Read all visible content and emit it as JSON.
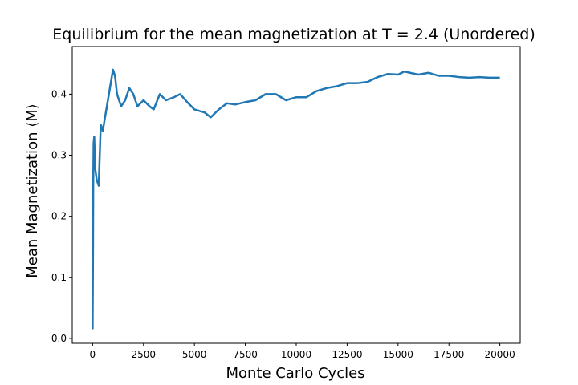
{
  "chart_data": {
    "type": "line",
    "title": "Equilibrium for the mean magnetization at T = 2.4 (Unordered)",
    "x_label": "Monte Carlo Cycles",
    "y_label": "Mean Magnetization ⟨M⟩",
    "x": [
      0,
      10,
      20,
      30,
      50,
      80,
      120,
      200,
      300,
      400,
      500,
      600,
      700,
      800,
      900,
      1000,
      1100,
      1200,
      1400,
      1600,
      1800,
      2000,
      2200,
      2500,
      2800,
      3000,
      3300,
      3600,
      4000,
      4300,
      4700,
      5000,
      5500,
      5800,
      6200,
      6600,
      7000,
      7500,
      8000,
      8500,
      9000,
      9500,
      10000,
      10500,
      11000,
      11500,
      12000,
      12500,
      13000,
      13500,
      14000,
      14500,
      15000,
      15300,
      16000,
      16500,
      17000,
      17500,
      18000,
      18500,
      19000,
      19500,
      20000
    ],
    "series": [
      {
        "name": "Mean Magnetization",
        "color": "#1f77b4",
        "values": [
          0.015,
          0.08,
          0.15,
          0.25,
          0.32,
          0.33,
          0.28,
          0.26,
          0.25,
          0.35,
          0.34,
          0.36,
          0.38,
          0.4,
          0.42,
          0.44,
          0.43,
          0.4,
          0.38,
          0.39,
          0.41,
          0.4,
          0.38,
          0.39,
          0.38,
          0.375,
          0.4,
          0.39,
          0.395,
          0.4,
          0.385,
          0.375,
          0.37,
          0.362,
          0.375,
          0.385,
          0.383,
          0.387,
          0.39,
          0.4,
          0.4,
          0.39,
          0.395,
          0.395,
          0.405,
          0.41,
          0.413,
          0.418,
          0.418,
          0.42,
          0.428,
          0.433,
          0.432,
          0.437,
          0.432,
          0.435,
          0.43,
          0.43,
          0.428,
          0.427,
          0.428,
          0.427,
          0.427
        ]
      }
    ],
    "xlim": [
      -1000,
      21000
    ],
    "ylim": [
      -0.008,
      0.478
    ],
    "xticks": [
      0,
      2500,
      5000,
      7500,
      10000,
      12500,
      15000,
      17500,
      20000
    ],
    "yticks": [
      {
        "value": 0,
        "label": "0.0"
      },
      0.1,
      0.2,
      0.3,
      0.4
    ]
  }
}
